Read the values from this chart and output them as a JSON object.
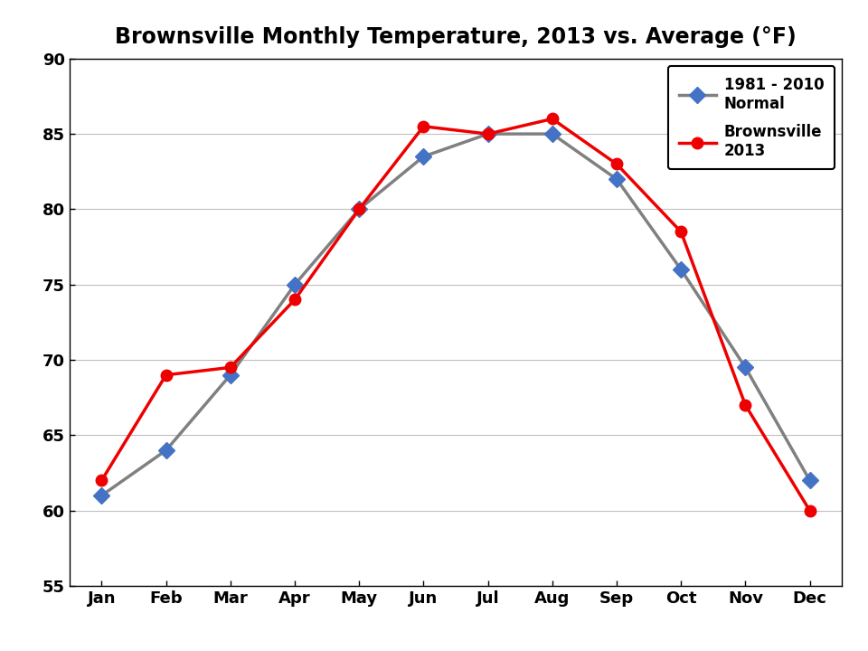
{
  "title": "Brownsville Monthly Temperature, 2013 vs. Average (°F)",
  "months": [
    "Jan",
    "Feb",
    "Mar",
    "Apr",
    "May",
    "Jun",
    "Jul",
    "Aug",
    "Sep",
    "Oct",
    "Nov",
    "Dec"
  ],
  "brownsville_2013": [
    62,
    69,
    69.5,
    74,
    80,
    85.5,
    85,
    86,
    83,
    78.5,
    67,
    60
  ],
  "normal_1981_2010": [
    61,
    64,
    69,
    75,
    80,
    83.5,
    85,
    85,
    82,
    76,
    69.5,
    62
  ],
  "ylim": [
    55,
    90
  ],
  "yticks": [
    55,
    60,
    65,
    70,
    75,
    80,
    85,
    90
  ],
  "line1_color": "#EE0000",
  "line1_marker": "o",
  "line1_label": "Brownsville\n2013",
  "line2_color": "#808080",
  "line2_marker": "D",
  "line2_label": "1981 - 2010\nNormal",
  "line2_marker_color": "#4472C4",
  "title_fontsize": 17,
  "tick_fontsize": 13,
  "legend_fontsize": 12,
  "linewidth": 2.5,
  "markersize": 9,
  "fig_bg": "#FFFFFF",
  "plot_bg": "#FFFFFF",
  "grid_color": "#C0C0C0"
}
